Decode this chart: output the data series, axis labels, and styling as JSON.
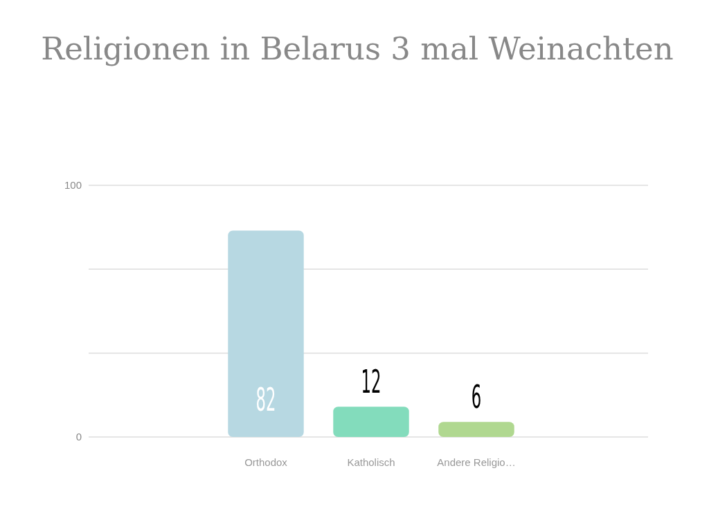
{
  "chart_data": {
    "type": "bar",
    "title": "Religionen in Belarus 3 mal Weinachten",
    "categories": [
      "Orthodox",
      "Katholisch",
      "Andere Religio…"
    ],
    "values": [
      82,
      12,
      6
    ],
    "colors": [
      "#b7d8e2",
      "#83dcbc",
      "#b0d890"
    ],
    "ylim": [
      0,
      100
    ],
    "yticks": [
      0,
      {
        "value": 33.33,
        "label": null
      },
      {
        "value": 66.67,
        "label": null
      },
      100
    ],
    "grid": "y",
    "data_labels": true
  }
}
